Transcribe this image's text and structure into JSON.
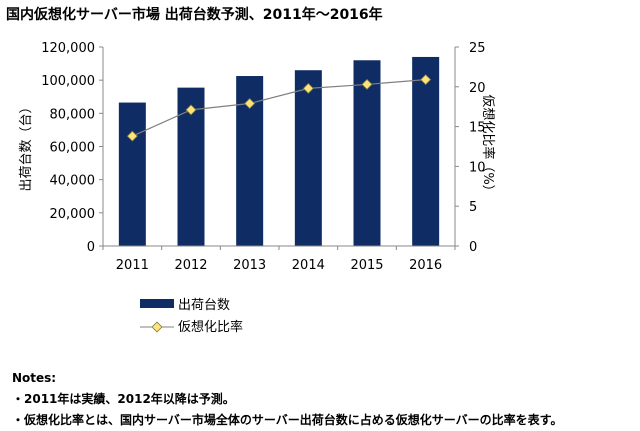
{
  "title": "国内仮想化サーバー市場 出荷台数予測、2011年～2016年",
  "chart_data": {
    "type": "bar",
    "categories": [
      "2011",
      "2012",
      "2013",
      "2014",
      "2015",
      "2016"
    ],
    "series": [
      {
        "name": "出荷台数",
        "type": "bar",
        "axis": "left",
        "color": "#0f2d64",
        "values": [
          86500,
          95500,
          102500,
          106000,
          112000,
          114000
        ]
      },
      {
        "name": "仮想化比率",
        "type": "line",
        "axis": "right",
        "line_color": "#808080",
        "marker_color": "#ffe37a",
        "marker_border": "#7a7a40",
        "values": [
          13.8,
          17.1,
          17.9,
          19.8,
          20.3,
          20.9
        ]
      }
    ],
    "ylabel": "出荷台数（台）",
    "y2label": "仮想化比率（%）",
    "ylim": [
      0,
      120000
    ],
    "y2lim": [
      0,
      25
    ],
    "yticks": [
      "0",
      "20,000",
      "40,000",
      "60,000",
      "80,000",
      "100,000",
      "120,000"
    ],
    "y2ticks": [
      "0",
      "5",
      "10",
      "15",
      "20",
      "25"
    ],
    "grid": false,
    "legend_position": "bottom-left"
  },
  "notes": {
    "heading": "Notes:",
    "items": [
      "・2011年は実績、2012年以降は予測。",
      "・仮想化比率とは、国内サーバー市場全体のサーバー出荷台数に占める仮想化サーバーの比率を表す。"
    ]
  }
}
